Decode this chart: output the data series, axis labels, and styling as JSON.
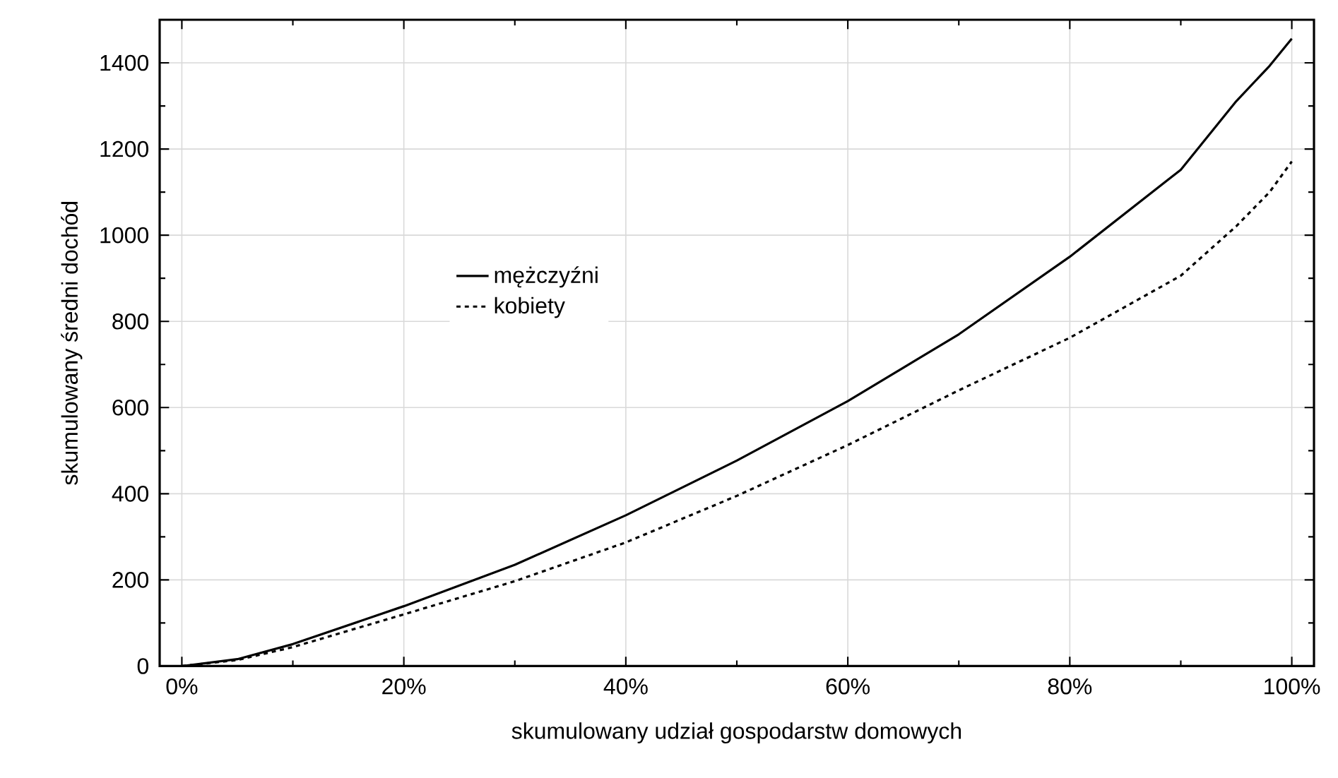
{
  "chart_data": {
    "type": "line",
    "xlabel": "skumulowany udział gospodarstw domowych",
    "ylabel": "skumulowany średni dochód",
    "xlim": [
      -2,
      102
    ],
    "ylim": [
      0,
      1500
    ],
    "xticks": [
      {
        "value": 0,
        "label": "0%"
      },
      {
        "value": 20,
        "label": "20%"
      },
      {
        "value": 40,
        "label": "40%"
      },
      {
        "value": 60,
        "label": "60%"
      },
      {
        "value": 80,
        "label": "80%"
      },
      {
        "value": 100,
        "label": "100%"
      }
    ],
    "yticks": [
      0,
      200,
      400,
      600,
      800,
      1000,
      1200,
      1400
    ],
    "grid": true,
    "legend": "center",
    "marker": "none",
    "x": [
      0,
      5,
      10,
      20,
      30,
      40,
      50,
      60,
      70,
      80,
      90,
      95,
      98,
      100
    ],
    "series": [
      {
        "name": "mężczyźni",
        "color": "#000000",
        "line_style": "solid",
        "values": [
          0,
          16,
          51,
          139,
          235,
          350,
          477,
          615,
          770,
          950,
          1152,
          1311,
          1393,
          1456
        ]
      },
      {
        "name": "kobiety",
        "color": "#000000",
        "line_style": "dotted",
        "values": [
          0,
          14,
          44,
          120,
          197,
          287,
          395,
          513,
          640,
          762,
          906,
          1021,
          1100,
          1171
        ]
      }
    ]
  }
}
